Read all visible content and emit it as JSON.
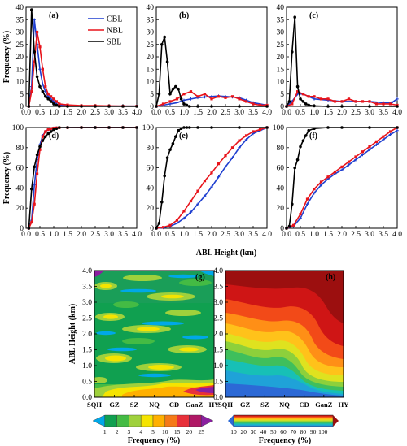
{
  "chart_data": [
    {
      "type": "line",
      "panel_label": "(a)",
      "xlim": [
        0,
        4
      ],
      "ylim": [
        0,
        40
      ],
      "xticks": [
        "0.0",
        "0.5",
        "1.0",
        "1.5",
        "2.0",
        "2.5",
        "3.0",
        "3.5",
        "4.0"
      ],
      "yticks": [
        "0",
        "5",
        "10",
        "15",
        "20",
        "25",
        "30",
        "35",
        "40"
      ],
      "ylabel": "Frequency (%)",
      "legend": [
        "CBL",
        "NBL",
        "SBL"
      ],
      "series": [
        {
          "name": "CBL",
          "color": "#1f3fd0",
          "x": [
            0.1,
            0.2,
            0.3,
            0.4,
            0.5,
            0.6,
            0.7,
            0.8,
            0.9,
            1.0,
            1.1,
            1.2,
            1.5,
            2,
            2.5,
            3,
            3.5,
            4
          ],
          "y": [
            0,
            8,
            35,
            25,
            15,
            9,
            6,
            4,
            3,
            2,
            1,
            0.5,
            0.3,
            0.2,
            0.2,
            0.1,
            0.1,
            0.1
          ]
        },
        {
          "name": "NBL",
          "color": "#e8141b",
          "x": [
            0.1,
            0.2,
            0.3,
            0.4,
            0.5,
            0.6,
            0.7,
            0.8,
            0.9,
            1.0,
            1.1,
            1.2,
            1.5,
            2,
            2.5,
            3,
            3.5,
            4
          ],
          "y": [
            0,
            6,
            18,
            30,
            24,
            15,
            8,
            5,
            4,
            3,
            2,
            1,
            0.6,
            0.3,
            0.3,
            0.2,
            0.1,
            0.1
          ]
        },
        {
          "name": "SBL",
          "color": "#000000",
          "x": [
            0.1,
            0.2,
            0.3,
            0.4,
            0.5,
            0.6,
            0.7,
            0.8,
            0.9,
            1.0,
            1.1,
            1.2,
            1.5,
            2,
            2.5,
            3,
            3.5,
            4
          ],
          "y": [
            0,
            39,
            22,
            12,
            8,
            6,
            4,
            3,
            2,
            1,
            0.5,
            0,
            0,
            0,
            0,
            0,
            0,
            0
          ]
        }
      ]
    },
    {
      "type": "line",
      "panel_label": "(b)",
      "xlim": [
        0,
        4
      ],
      "ylim": [
        0,
        40
      ],
      "xticks": [
        "0.0",
        "0.5",
        "1.0",
        "1.5",
        "2.0",
        "2.5",
        "3.0",
        "3.5",
        "4.0"
      ],
      "yticks": [
        "0",
        "5",
        "10",
        "15",
        "20",
        "25",
        "30",
        "35",
        "40"
      ],
      "series": [
        {
          "name": "CBL",
          "color": "#1f3fd0",
          "x": [
            0,
            0.25,
            0.5,
            0.75,
            1,
            1.25,
            1.5,
            1.75,
            2,
            2.25,
            2.5,
            2.75,
            3,
            3.25,
            3.5,
            3.75,
            4
          ],
          "y": [
            0,
            0.5,
            1,
            1.5,
            2.5,
            3,
            3.5,
            3.8,
            4,
            4.2,
            4,
            3.8,
            3.5,
            2.5,
            1.5,
            1,
            0.5
          ]
        },
        {
          "name": "NBL",
          "color": "#e8141b",
          "x": [
            0,
            0.25,
            0.5,
            0.75,
            1,
            1.25,
            1.5,
            1.75,
            2,
            2.25,
            2.5,
            2.75,
            3,
            3.25,
            3.5,
            3.75,
            4
          ],
          "y": [
            0,
            1,
            2,
            3,
            5,
            6,
            4,
            5,
            3,
            4,
            3.5,
            4,
            3,
            2,
            1,
            0.5,
            0.5
          ]
        },
        {
          "name": "SBL",
          "color": "#000000",
          "x": [
            0,
            0.1,
            0.2,
            0.3,
            0.4,
            0.5,
            0.6,
            0.7,
            0.8,
            0.9,
            1,
            1.1,
            1.2,
            1.5,
            2,
            3,
            4
          ],
          "y": [
            0,
            5,
            25,
            28,
            18,
            5,
            7,
            8,
            7,
            3,
            1,
            0.5,
            0,
            0,
            0,
            0,
            0
          ]
        }
      ]
    },
    {
      "type": "line",
      "panel_label": "(c)",
      "xlim": [
        0,
        4
      ],
      "ylim": [
        0,
        40
      ],
      "xticks": [
        "0.0",
        "0.5",
        "1.0",
        "1.5",
        "2.0",
        "2.5",
        "3.0",
        "3.5",
        "4.0"
      ],
      "yticks": [
        "0",
        "5",
        "10",
        "15",
        "20",
        "25",
        "30",
        "35",
        "40"
      ],
      "series": [
        {
          "name": "CBL",
          "color": "#1f3fd0",
          "x": [
            0,
            0.2,
            0.4,
            0.6,
            0.8,
            1,
            1.5,
            2,
            2.5,
            3,
            3.5,
            3.8,
            4
          ],
          "y": [
            0,
            2,
            5,
            5,
            4,
            3,
            2.5,
            2,
            2,
            2,
            1.5,
            1.5,
            3
          ]
        },
        {
          "name": "NBL",
          "color": "#e8141b",
          "x": [
            0,
            0.2,
            0.4,
            0.6,
            0.8,
            1,
            1.25,
            1.5,
            1.75,
            2,
            2.25,
            2.5,
            2.75,
            3,
            3.25,
            3.5,
            3.75,
            4
          ],
          "y": [
            0,
            1,
            6,
            5,
            4,
            4,
            3,
            3,
            2,
            2,
            3,
            2,
            2,
            2,
            1,
            1,
            1,
            0.5
          ]
        },
        {
          "name": "SBL",
          "color": "#000000",
          "x": [
            0,
            0.1,
            0.2,
            0.3,
            0.4,
            0.5,
            0.6,
            0.7,
            0.8,
            1,
            1.5,
            2,
            3,
            4
          ],
          "y": [
            0,
            2,
            22,
            36,
            8,
            3,
            2,
            1,
            0.5,
            0.2,
            0,
            0,
            0,
            0
          ]
        }
      ]
    },
    {
      "type": "line",
      "panel_label": "(d)",
      "xlim": [
        0,
        4
      ],
      "ylim": [
        0,
        100
      ],
      "xticks": [
        "0.0",
        "0.5",
        "1.0",
        "1.5",
        "2.0",
        "2.5",
        "3.0",
        "3.5",
        "4.0"
      ],
      "yticks": [
        "0",
        "20",
        "40",
        "60",
        "80",
        "100"
      ],
      "ylabel": "Frequency (%)",
      "series": [
        {
          "name": "CBL",
          "color": "#1f3fd0",
          "x": [
            0.1,
            0.2,
            0.3,
            0.4,
            0.5,
            0.6,
            0.7,
            0.8,
            0.9,
            1.0,
            1.1,
            1.2,
            1.5,
            2,
            2.5,
            3,
            3.5,
            4
          ],
          "y": [
            0,
            8,
            43,
            68,
            83,
            92,
            96,
            98,
            99,
            99.5,
            99.7,
            99.8,
            99.9,
            100,
            100,
            100,
            100,
            100
          ]
        },
        {
          "name": "NBL",
          "color": "#e8141b",
          "x": [
            0.1,
            0.2,
            0.3,
            0.4,
            0.5,
            0.6,
            0.7,
            0.8,
            0.9,
            1.0,
            1.1,
            1.2,
            1.5,
            2,
            2.5,
            3,
            3.5,
            4
          ],
          "y": [
            0,
            6,
            24,
            54,
            78,
            91,
            96,
            98,
            99,
            99.5,
            99.7,
            99.8,
            99.9,
            100,
            100,
            100,
            100,
            100
          ]
        },
        {
          "name": "SBL",
          "color": "#000000",
          "x": [
            0.1,
            0.2,
            0.3,
            0.4,
            0.5,
            0.6,
            0.7,
            0.8,
            0.9,
            1.0,
            1.1,
            1.2,
            1.5,
            2,
            2.5,
            3,
            3.5,
            4
          ],
          "y": [
            0,
            39,
            61,
            73,
            81,
            87,
            91,
            94,
            96,
            98,
            99,
            100,
            100,
            100,
            100,
            100,
            100,
            100
          ]
        }
      ]
    },
    {
      "type": "line",
      "panel_label": "(e)",
      "xlim": [
        0,
        4
      ],
      "ylim": [
        0,
        100
      ],
      "xticks": [
        "0.0",
        "0.5",
        "1.0",
        "1.5",
        "2.0",
        "2.5",
        "3.0",
        "3.5",
        "4.0"
      ],
      "yticks": [
        "0",
        "20",
        "40",
        "60",
        "80",
        "100"
      ],
      "series": [
        {
          "name": "CBL",
          "color": "#1f3fd0",
          "x": [
            0,
            0.25,
            0.5,
            0.75,
            1,
            1.25,
            1.5,
            1.75,
            2,
            2.25,
            2.5,
            2.75,
            3,
            3.25,
            3.5,
            3.75,
            4
          ],
          "y": [
            0,
            0.5,
            2,
            5,
            10,
            16,
            24,
            32,
            41,
            51,
            61,
            70,
            80,
            88,
            94,
            97,
            100
          ]
        },
        {
          "name": "NBL",
          "color": "#e8141b",
          "x": [
            0,
            0.25,
            0.5,
            0.75,
            1,
            1.25,
            1.5,
            1.75,
            2,
            2.25,
            2.5,
            2.75,
            3,
            3.25,
            3.5,
            3.75,
            4
          ],
          "y": [
            0,
            1,
            3,
            8,
            17,
            27,
            37,
            47,
            55,
            64,
            72,
            80,
            87,
            92,
            96,
            98,
            100
          ]
        },
        {
          "name": "SBL",
          "color": "#000000",
          "x": [
            0,
            0.1,
            0.2,
            0.3,
            0.4,
            0.5,
            0.6,
            0.7,
            0.8,
            0.9,
            1,
            1.1,
            1.2,
            1.5,
            2,
            3,
            4
          ],
          "y": [
            0,
            5,
            26,
            52,
            70,
            78,
            84,
            91,
            97,
            99,
            100,
            100,
            100,
            100,
            100,
            100,
            100
          ]
        }
      ]
    },
    {
      "type": "line",
      "panel_label": "(f)",
      "xlim": [
        0,
        4
      ],
      "ylim": [
        0,
        100
      ],
      "xticks": [
        "0.0",
        "0.5",
        "1.0",
        "1.5",
        "2.0",
        "2.5",
        "3.0",
        "3.5",
        "4.0"
      ],
      "yticks": [
        "0",
        "20",
        "40",
        "60",
        "80",
        "100"
      ],
      "series": [
        {
          "name": "CBL",
          "color": "#1f3fd0",
          "x": [
            0,
            0.25,
            0.5,
            0.75,
            1,
            1.25,
            1.5,
            1.75,
            2,
            2.25,
            2.5,
            2.75,
            3,
            3.25,
            3.5,
            3.75,
            4
          ],
          "y": [
            0,
            2,
            10,
            24,
            35,
            43,
            49,
            54,
            58,
            63,
            68,
            73,
            78,
            83,
            88,
            93,
            97
          ]
        },
        {
          "name": "NBL",
          "color": "#e8141b",
          "x": [
            0,
            0.25,
            0.5,
            0.75,
            1,
            1.25,
            1.5,
            1.75,
            2,
            2.25,
            2.5,
            2.75,
            3,
            3.25,
            3.5,
            3.75,
            4
          ],
          "y": [
            0,
            3,
            14,
            29,
            39,
            46,
            51,
            56,
            61,
            66,
            71,
            76,
            81,
            86,
            91,
            96,
            100
          ]
        },
        {
          "name": "SBL",
          "color": "#000000",
          "x": [
            0,
            0.1,
            0.2,
            0.3,
            0.4,
            0.5,
            0.6,
            0.7,
            0.8,
            1,
            1.5,
            2,
            3,
            4
          ],
          "y": [
            0,
            2,
            24,
            60,
            68,
            81,
            87,
            92,
            97,
            99,
            100,
            100,
            100,
            100
          ]
        }
      ]
    },
    {
      "type": "heatmap",
      "panel_label": "(g)",
      "ylabel": "ABL Height (km)",
      "yticks": [
        "0.0",
        "0.5",
        "1.0",
        "1.5",
        "2.0",
        "2.5",
        "3.0",
        "3.5",
        "4.0"
      ],
      "categories": [
        "SQH",
        "GZ",
        "SZ",
        "NQ",
        "CD",
        "GanZ",
        "HY"
      ],
      "colorbar": {
        "label": "Frequency (%)",
        "ticks": [
          "1",
          "2",
          "3",
          "4",
          "5",
          "10",
          "15",
          "20",
          "25"
        ],
        "colors": [
          "#00a8e8",
          "#10a050",
          "#44bb44",
          "#9fd13c",
          "#f5e400",
          "#ffb000",
          "#f57a18",
          "#e8303a",
          "#b01866",
          "#8b1fa0"
        ]
      }
    },
    {
      "type": "heatmap",
      "panel_label": "(h)",
      "yticks": [
        "0.0",
        "0.5",
        "1.0",
        "1.5",
        "2.0",
        "2.5",
        "3.0",
        "3.5",
        "4.0"
      ],
      "categories": [
        "SQH",
        "GZ",
        "SZ",
        "NQ",
        "CD",
        "GanZ",
        "HY"
      ],
      "colorbar": {
        "label": "Frequency (%)",
        "ticks": [
          "10",
          "20",
          "30",
          "40",
          "50",
          "60",
          "70",
          "80",
          "90",
          "100"
        ],
        "colors": [
          "#2c69d6",
          "#1fa2d8",
          "#17c0b6",
          "#3fbf5c",
          "#8dd03b",
          "#dfe21f",
          "#ffc21a",
          "#ff8f16",
          "#f24a18",
          "#cf1515",
          "#9c0f0f"
        ]
      }
    }
  ],
  "common": {
    "xlabel": "ABL Height (km)"
  }
}
